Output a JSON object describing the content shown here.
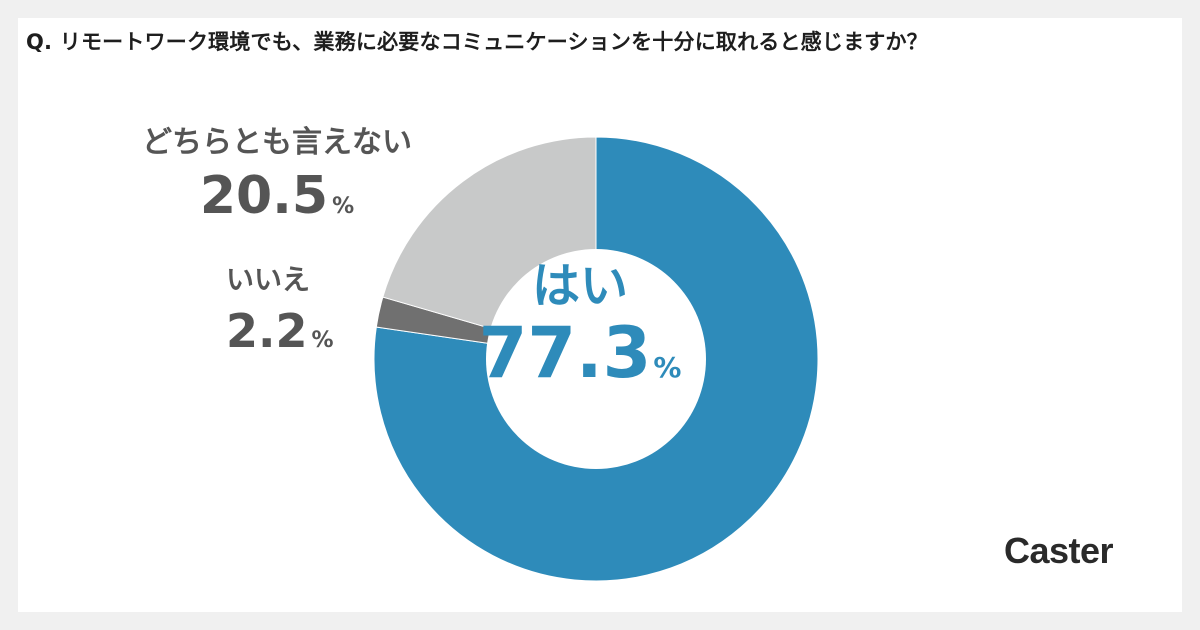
{
  "brand": {
    "logo_text": "Caster"
  },
  "chart_data": {
    "type": "pie",
    "title": "Q. リモートワーク環境でも、業務に必要なコミュニケーションを十分に取れると感じますか？",
    "unit": "%",
    "categories": [
      "はい",
      "いいえ",
      "どちらとも言えない"
    ],
    "values": [
      77.3,
      2.2,
      20.5
    ],
    "value_labels": [
      "77.3",
      "2.2",
      "20.5"
    ],
    "colors": [
      "#2e8bba",
      "#707070",
      "#c8c9c9"
    ],
    "hole": true,
    "legend": "none"
  }
}
